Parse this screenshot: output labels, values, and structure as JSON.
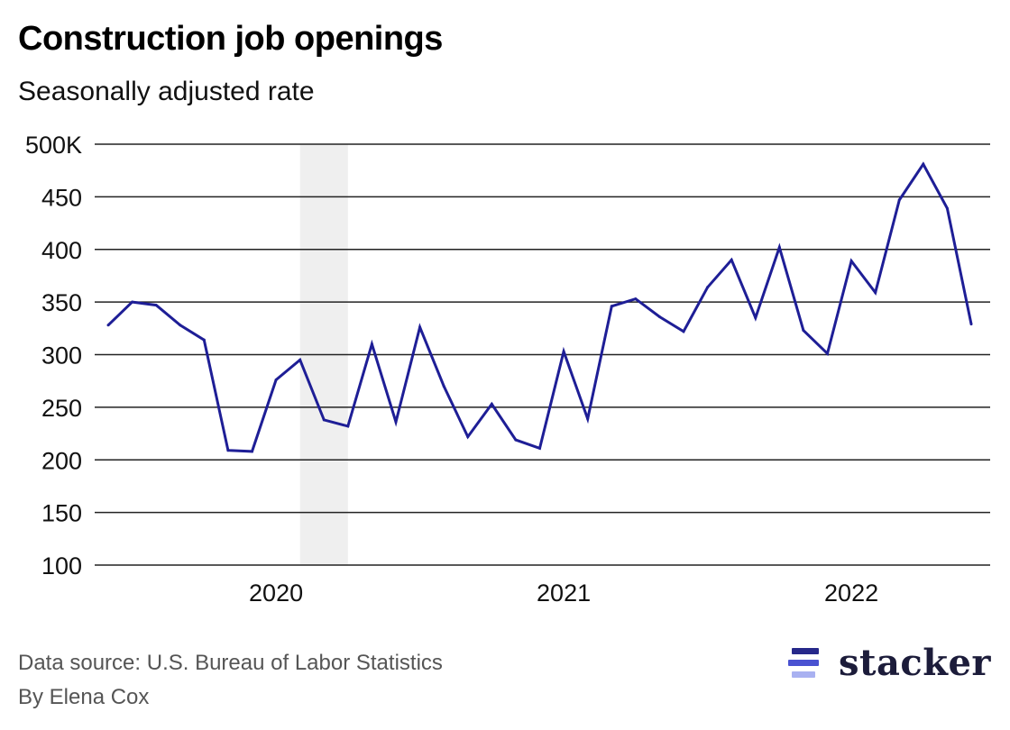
{
  "title": "Construction job openings",
  "subtitle": "Seasonally adjusted rate",
  "footer": {
    "source": "Data source: U.S. Bureau of Labor Statistics",
    "byline": "By Elena Cox"
  },
  "brand": {
    "name": "stacker",
    "icon": "stacker-logo-icon"
  },
  "colors": {
    "line": "#1e1e96",
    "grid": "#222222",
    "recession_band": "#efefef",
    "logo_dark": "#1c1c3a",
    "logo_bar_1": "#26288a",
    "logo_bar_2": "#4a52d1",
    "logo_bar_3": "#a9b1f1"
  },
  "chart_data": {
    "type": "line",
    "title": "Construction job openings",
    "subtitle": "Seasonally adjusted rate",
    "xlabel": "",
    "ylabel": "",
    "ylim": [
      100,
      500
    ],
    "y_ticks": [
      100,
      150,
      200,
      250,
      300,
      350,
      400,
      450,
      500
    ],
    "y_tick_labels": [
      "100",
      "150",
      "200",
      "250",
      "300",
      "350",
      "400",
      "450",
      "500K"
    ],
    "y_unit": "K",
    "x_tick_labels": [
      "2020",
      "2021",
      "2022"
    ],
    "x_ticks": [
      "2020-01",
      "2021-01",
      "2022-01"
    ],
    "grid": true,
    "legend": "none",
    "shaded_regions": [
      {
        "start": "2020-02",
        "end": "2020-04",
        "label": ""
      }
    ],
    "x": [
      "2019-06",
      "2019-07",
      "2019-08",
      "2019-09",
      "2019-10",
      "2019-11",
      "2019-12",
      "2020-01",
      "2020-02",
      "2020-03",
      "2020-04",
      "2020-05",
      "2020-06",
      "2020-07",
      "2020-08",
      "2020-09",
      "2020-10",
      "2020-11",
      "2020-12",
      "2021-01",
      "2021-02",
      "2021-03",
      "2021-04",
      "2021-05",
      "2021-06",
      "2021-07",
      "2021-08",
      "2021-09",
      "2021-10",
      "2021-11",
      "2021-12",
      "2022-01",
      "2022-02",
      "2022-03",
      "2022-04",
      "2022-05",
      "2022-06"
    ],
    "series": [
      {
        "values": [
          328,
          350,
          347,
          328,
          314,
          209,
          208,
          276,
          295,
          238,
          232,
          310,
          236,
          326,
          270,
          222,
          253,
          219,
          211,
          303,
          239,
          346,
          353,
          336,
          322,
          364,
          390,
          335,
          402,
          323,
          301,
          389,
          359,
          447,
          481,
          439,
          329
        ]
      }
    ]
  }
}
